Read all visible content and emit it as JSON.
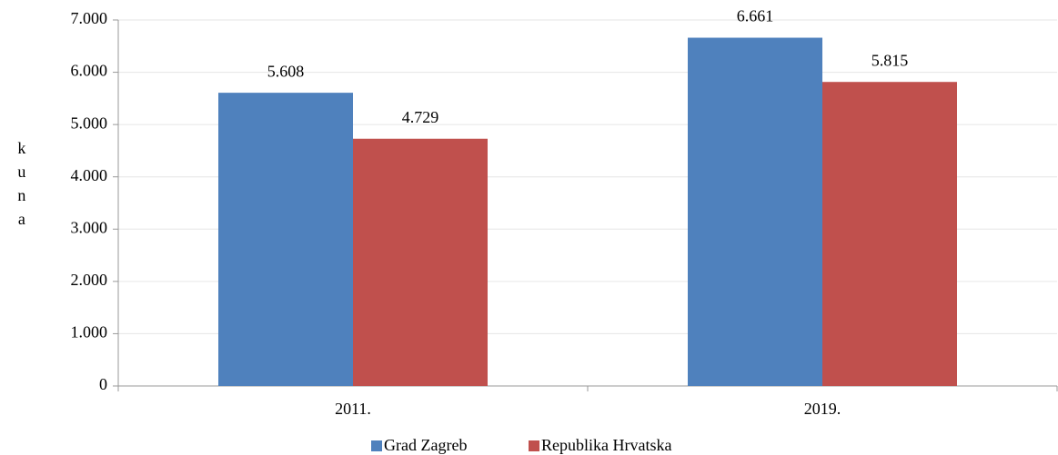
{
  "chart_data": {
    "type": "bar",
    "y_label": "kuna",
    "categories": [
      "2011.",
      "2019."
    ],
    "series": [
      {
        "name": "Grad Zagreb",
        "color": "#4f81bd",
        "values": [
          5608,
          6661
        ],
        "value_labels": [
          "5.608",
          "6.661"
        ]
      },
      {
        "name": "Republika Hrvatska",
        "color": "#c0504d",
        "values": [
          4729,
          5815
        ],
        "value_labels": [
          "4.729",
          "5.815"
        ]
      }
    ],
    "ylim": [
      0,
      7000
    ],
    "yticks": [
      0,
      {
        "value": 1000,
        "label": "1.000"
      },
      {
        "value": 2000,
        "label": "2.000"
      },
      {
        "value": 3000,
        "label": "3.000"
      },
      {
        "value": 4000,
        "label": "4.000"
      },
      {
        "value": 5000,
        "label": "5.000"
      },
      {
        "value": 6000,
        "label": "6.000"
      },
      {
        "value": 7000,
        "label": "7.000"
      }
    ],
    "grid": true,
    "legend": "bottom"
  }
}
